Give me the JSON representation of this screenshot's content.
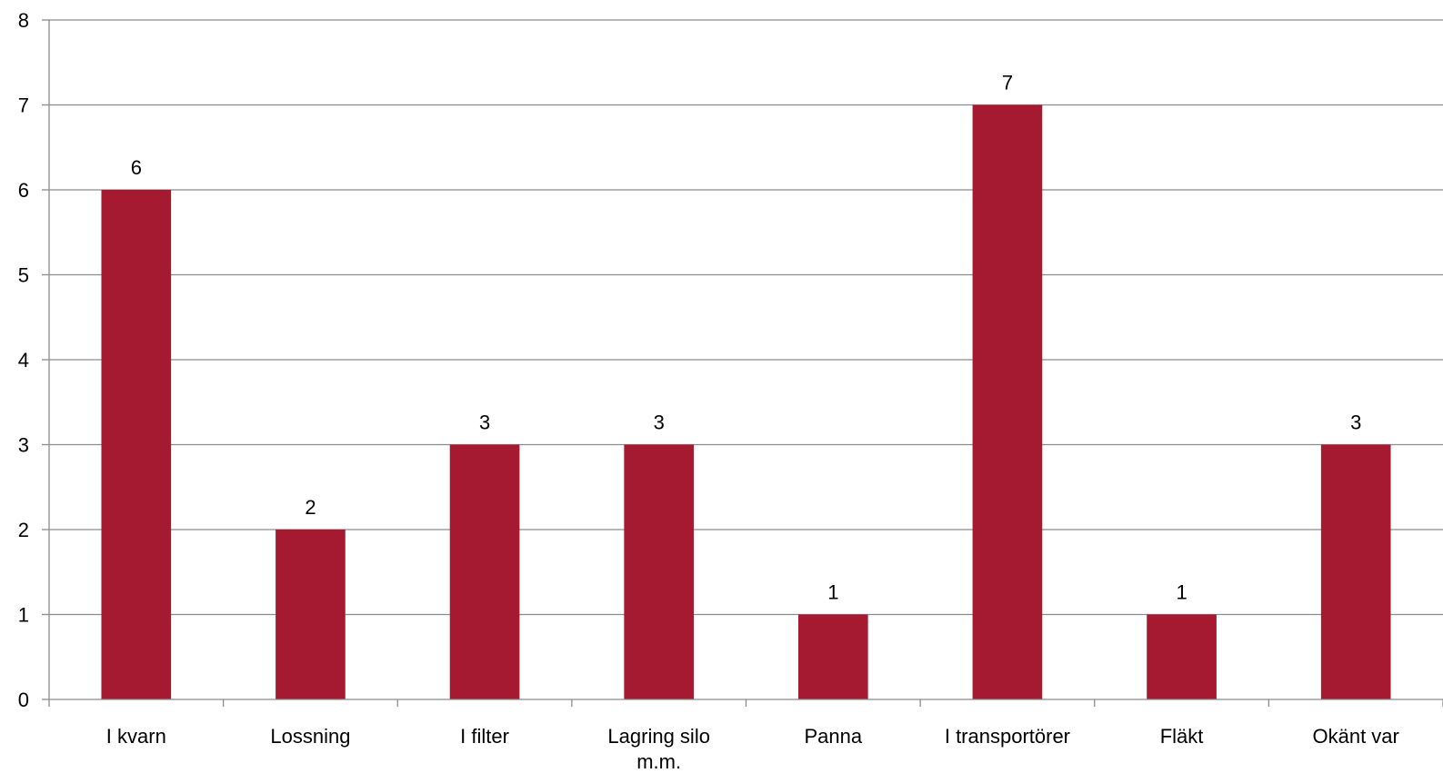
{
  "chart_data": {
    "type": "bar",
    "title": "",
    "xlabel": "",
    "ylabel": "",
    "categories": [
      [
        "I kvarn"
      ],
      [
        "Lossning"
      ],
      [
        "I filter"
      ],
      [
        "Lagring silo",
        "m.m."
      ],
      [
        "Panna"
      ],
      [
        "I transportörer"
      ],
      [
        "Fläkt"
      ],
      [
        "Okänt var"
      ]
    ],
    "values": [
      6,
      2,
      3,
      3,
      1,
      7,
      1,
      3
    ],
    "data_labels": [
      "6",
      "2",
      "3",
      "3",
      "1",
      "7",
      "1",
      "3"
    ],
    "ylim": [
      0,
      8
    ],
    "yticks": [
      "0",
      "1",
      "2",
      "3",
      "4",
      "5",
      "6",
      "7",
      "8"
    ],
    "grid": true,
    "legend": "none",
    "bar_color": "#a51931"
  }
}
